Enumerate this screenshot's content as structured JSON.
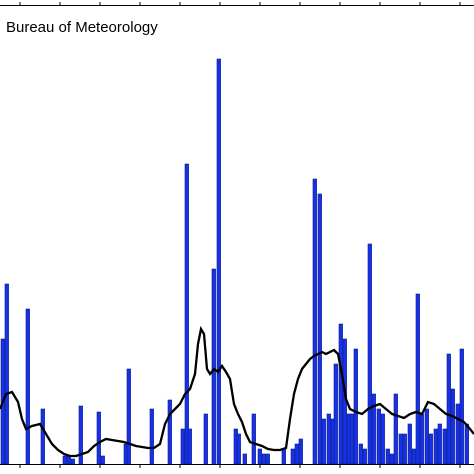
{
  "chart_data": {
    "type": "bar",
    "title": "Bureau of Meteorology",
    "xlabel": "",
    "ylabel": "",
    "ylim": [
      0,
      420
    ],
    "grid": false,
    "series": [
      {
        "type": "bar",
        "values": [
          70,
          115,
          185,
          0,
          0,
          0,
          0,
          0,
          0,
          0,
          0,
          0,
          155,
          0,
          0,
          0,
          0,
          0,
          0,
          0,
          0,
          8,
          0,
          0,
          0,
          8,
          8,
          5,
          0,
          55,
          0,
          0,
          0,
          0,
          0,
          0,
          52,
          0,
          0,
          0,
          0,
          0,
          0,
          0,
          0,
          0,
          0,
          0,
          20,
          0,
          0,
          0,
          0,
          0,
          0,
          0,
          0,
          0,
          68,
          15,
          52,
          0,
          0,
          0,
          0,
          0,
          0,
          0,
          0,
          0,
          0,
          0,
          0,
          0,
          0,
          0,
          0,
          0,
          58,
          0,
          0,
          0,
          0,
          35,
          0,
          0,
          0,
          300,
          0,
          0,
          0,
          52,
          0,
          0,
          0,
          0,
          0,
          0,
          0,
          0,
          0,
          0,
          0,
          0,
          0,
          0,
          0,
          0,
          0,
          0,
          0,
          0,
          0,
          0,
          0,
          0,
          0,
          0,
          0,
          0,
          0,
          0,
          0,
          0,
          0,
          0,
          0,
          0,
          0,
          0,
          0,
          0,
          0,
          0,
          0,
          0,
          0,
          0,
          0,
          0,
          0,
          0,
          0,
          0,
          0,
          0,
          0,
          0,
          0,
          0,
          0,
          0,
          0,
          0,
          0,
          0,
          0,
          0,
          0,
          0,
          0,
          0,
          0,
          0,
          0,
          0,
          0,
          0,
          0,
          0,
          0,
          0,
          0,
          0,
          0,
          0,
          0,
          0,
          0,
          0,
          0,
          0,
          0,
          0,
          0,
          0,
          0,
          0,
          0,
          0,
          0,
          0,
          0,
          0,
          0,
          0,
          0,
          0,
          0,
          0,
          0,
          0,
          0,
          0,
          0,
          0,
          0,
          0,
          0,
          0,
          0,
          0,
          0,
          0,
          0,
          0,
          0,
          0,
          0,
          0,
          0,
          0,
          0,
          0,
          0,
          0,
          0,
          0,
          0,
          0,
          0,
          0,
          0,
          0,
          0,
          0,
          0,
          0,
          0,
          0,
          0,
          0,
          0,
          0,
          0,
          0,
          0,
          0
        ]
      }
    ],
    "bars": [
      {
        "x": 1,
        "h": 125
      },
      {
        "x": 5,
        "h": 180
      },
      {
        "x": 26,
        "h": 155
      },
      {
        "x": 41,
        "h": 55
      },
      {
        "x": 63,
        "h": 8
      },
      {
        "x": 67,
        "h": 8
      },
      {
        "x": 71,
        "h": 5
      },
      {
        "x": 79,
        "h": 58
      },
      {
        "x": 97,
        "h": 52
      },
      {
        "x": 101,
        "h": 8
      },
      {
        "x": 124,
        "h": 20
      },
      {
        "x": 127,
        "h": 95
      },
      {
        "x": 150,
        "h": 55
      },
      {
        "x": 168,
        "h": 64
      },
      {
        "x": 181,
        "h": 35
      },
      {
        "x": 185,
        "h": 300
      },
      {
        "x": 188,
        "h": 35
      },
      {
        "x": 204,
        "h": 50
      },
      {
        "x": 212,
        "h": 195
      },
      {
        "x": 217,
        "h": 405
      },
      {
        "x": 234,
        "h": 35
      },
      {
        "x": 237,
        "h": 30
      },
      {
        "x": 243,
        "h": 10
      },
      {
        "x": 252,
        "h": 50
      },
      {
        "x": 258,
        "h": 15
      },
      {
        "x": 262,
        "h": 10
      },
      {
        "x": 266,
        "h": 10
      },
      {
        "x": 282,
        "h": 15
      },
      {
        "x": 291,
        "h": 15
      },
      {
        "x": 295,
        "h": 20
      },
      {
        "x": 299,
        "h": 25
      },
      {
        "x": 313,
        "h": 285
      },
      {
        "x": 318,
        "h": 270
      },
      {
        "x": 322,
        "h": 45
      },
      {
        "x": 327,
        "h": 50
      },
      {
        "x": 331,
        "h": 45
      },
      {
        "x": 334,
        "h": 100
      },
      {
        "x": 339,
        "h": 140
      },
      {
        "x": 343,
        "h": 125
      },
      {
        "x": 347,
        "h": 50
      },
      {
        "x": 350,
        "h": 50
      },
      {
        "x": 354,
        "h": 115
      },
      {
        "x": 359,
        "h": 20
      },
      {
        "x": 363,
        "h": 15
      },
      {
        "x": 368,
        "h": 220
      },
      {
        "x": 372,
        "h": 70
      },
      {
        "x": 377,
        "h": 55
      },
      {
        "x": 381,
        "h": 50
      },
      {
        "x": 386,
        "h": 15
      },
      {
        "x": 390,
        "h": 10
      },
      {
        "x": 394,
        "h": 70
      },
      {
        "x": 399,
        "h": 30
      },
      {
        "x": 403,
        "h": 30
      },
      {
        "x": 408,
        "h": 40
      },
      {
        "x": 412,
        "h": 15
      },
      {
        "x": 416,
        "h": 170
      },
      {
        "x": 420,
        "h": 50
      },
      {
        "x": 425,
        "h": 55
      },
      {
        "x": 429,
        "h": 30
      },
      {
        "x": 434,
        "h": 35
      },
      {
        "x": 438,
        "h": 40
      },
      {
        "x": 443,
        "h": 35
      },
      {
        "x": 447,
        "h": 110
      },
      {
        "x": 451,
        "h": 75
      },
      {
        "x": 456,
        "h": 60
      },
      {
        "x": 460,
        "h": 115
      },
      {
        "x": 465,
        "h": 40
      }
    ],
    "line": [
      [
        0,
        55
      ],
      [
        6,
        70
      ],
      [
        12,
        72
      ],
      [
        18,
        62
      ],
      [
        22,
        45
      ],
      [
        26,
        35
      ],
      [
        32,
        38
      ],
      [
        40,
        40
      ],
      [
        46,
        30
      ],
      [
        52,
        20
      ],
      [
        58,
        14
      ],
      [
        64,
        10
      ],
      [
        70,
        8
      ],
      [
        76,
        8
      ],
      [
        82,
        10
      ],
      [
        88,
        12
      ],
      [
        94,
        18
      ],
      [
        100,
        22
      ],
      [
        106,
        25
      ],
      [
        112,
        24
      ],
      [
        118,
        23
      ],
      [
        124,
        22
      ],
      [
        130,
        20
      ],
      [
        136,
        18
      ],
      [
        142,
        17
      ],
      [
        148,
        16
      ],
      [
        154,
        16
      ],
      [
        160,
        20
      ],
      [
        165,
        40
      ],
      [
        170,
        50
      ],
      [
        175,
        55
      ],
      [
        180,
        60
      ],
      [
        185,
        70
      ],
      [
        190,
        75
      ],
      [
        195,
        90
      ],
      [
        198,
        120
      ],
      [
        201,
        135
      ],
      [
        204,
        130
      ],
      [
        207,
        95
      ],
      [
        210,
        90
      ],
      [
        214,
        95
      ],
      [
        218,
        92
      ],
      [
        222,
        98
      ],
      [
        226,
        92
      ],
      [
        230,
        85
      ],
      [
        234,
        60
      ],
      [
        238,
        50
      ],
      [
        242,
        42
      ],
      [
        246,
        30
      ],
      [
        250,
        22
      ],
      [
        256,
        20
      ],
      [
        262,
        18
      ],
      [
        268,
        15
      ],
      [
        274,
        14
      ],
      [
        280,
        14
      ],
      [
        286,
        16
      ],
      [
        290,
        45
      ],
      [
        294,
        70
      ],
      [
        298,
        85
      ],
      [
        302,
        95
      ],
      [
        306,
        100
      ],
      [
        310,
        105
      ],
      [
        314,
        108
      ],
      [
        318,
        110
      ],
      [
        322,
        112
      ],
      [
        326,
        110
      ],
      [
        330,
        112
      ],
      [
        334,
        114
      ],
      [
        338,
        110
      ],
      [
        342,
        90
      ],
      [
        346,
        65
      ],
      [
        350,
        55
      ],
      [
        356,
        52
      ],
      [
        362,
        50
      ],
      [
        368,
        55
      ],
      [
        374,
        58
      ],
      [
        380,
        60
      ],
      [
        386,
        55
      ],
      [
        392,
        50
      ],
      [
        398,
        48
      ],
      [
        404,
        46
      ],
      [
        410,
        50
      ],
      [
        416,
        52
      ],
      [
        422,
        50
      ],
      [
        428,
        62
      ],
      [
        434,
        60
      ],
      [
        440,
        55
      ],
      [
        446,
        50
      ],
      [
        452,
        48
      ],
      [
        458,
        45
      ],
      [
        464,
        42
      ],
      [
        470,
        35
      ],
      [
        474,
        30
      ]
    ],
    "annotations": [
      "Bureau of Meteorology"
    ]
  }
}
